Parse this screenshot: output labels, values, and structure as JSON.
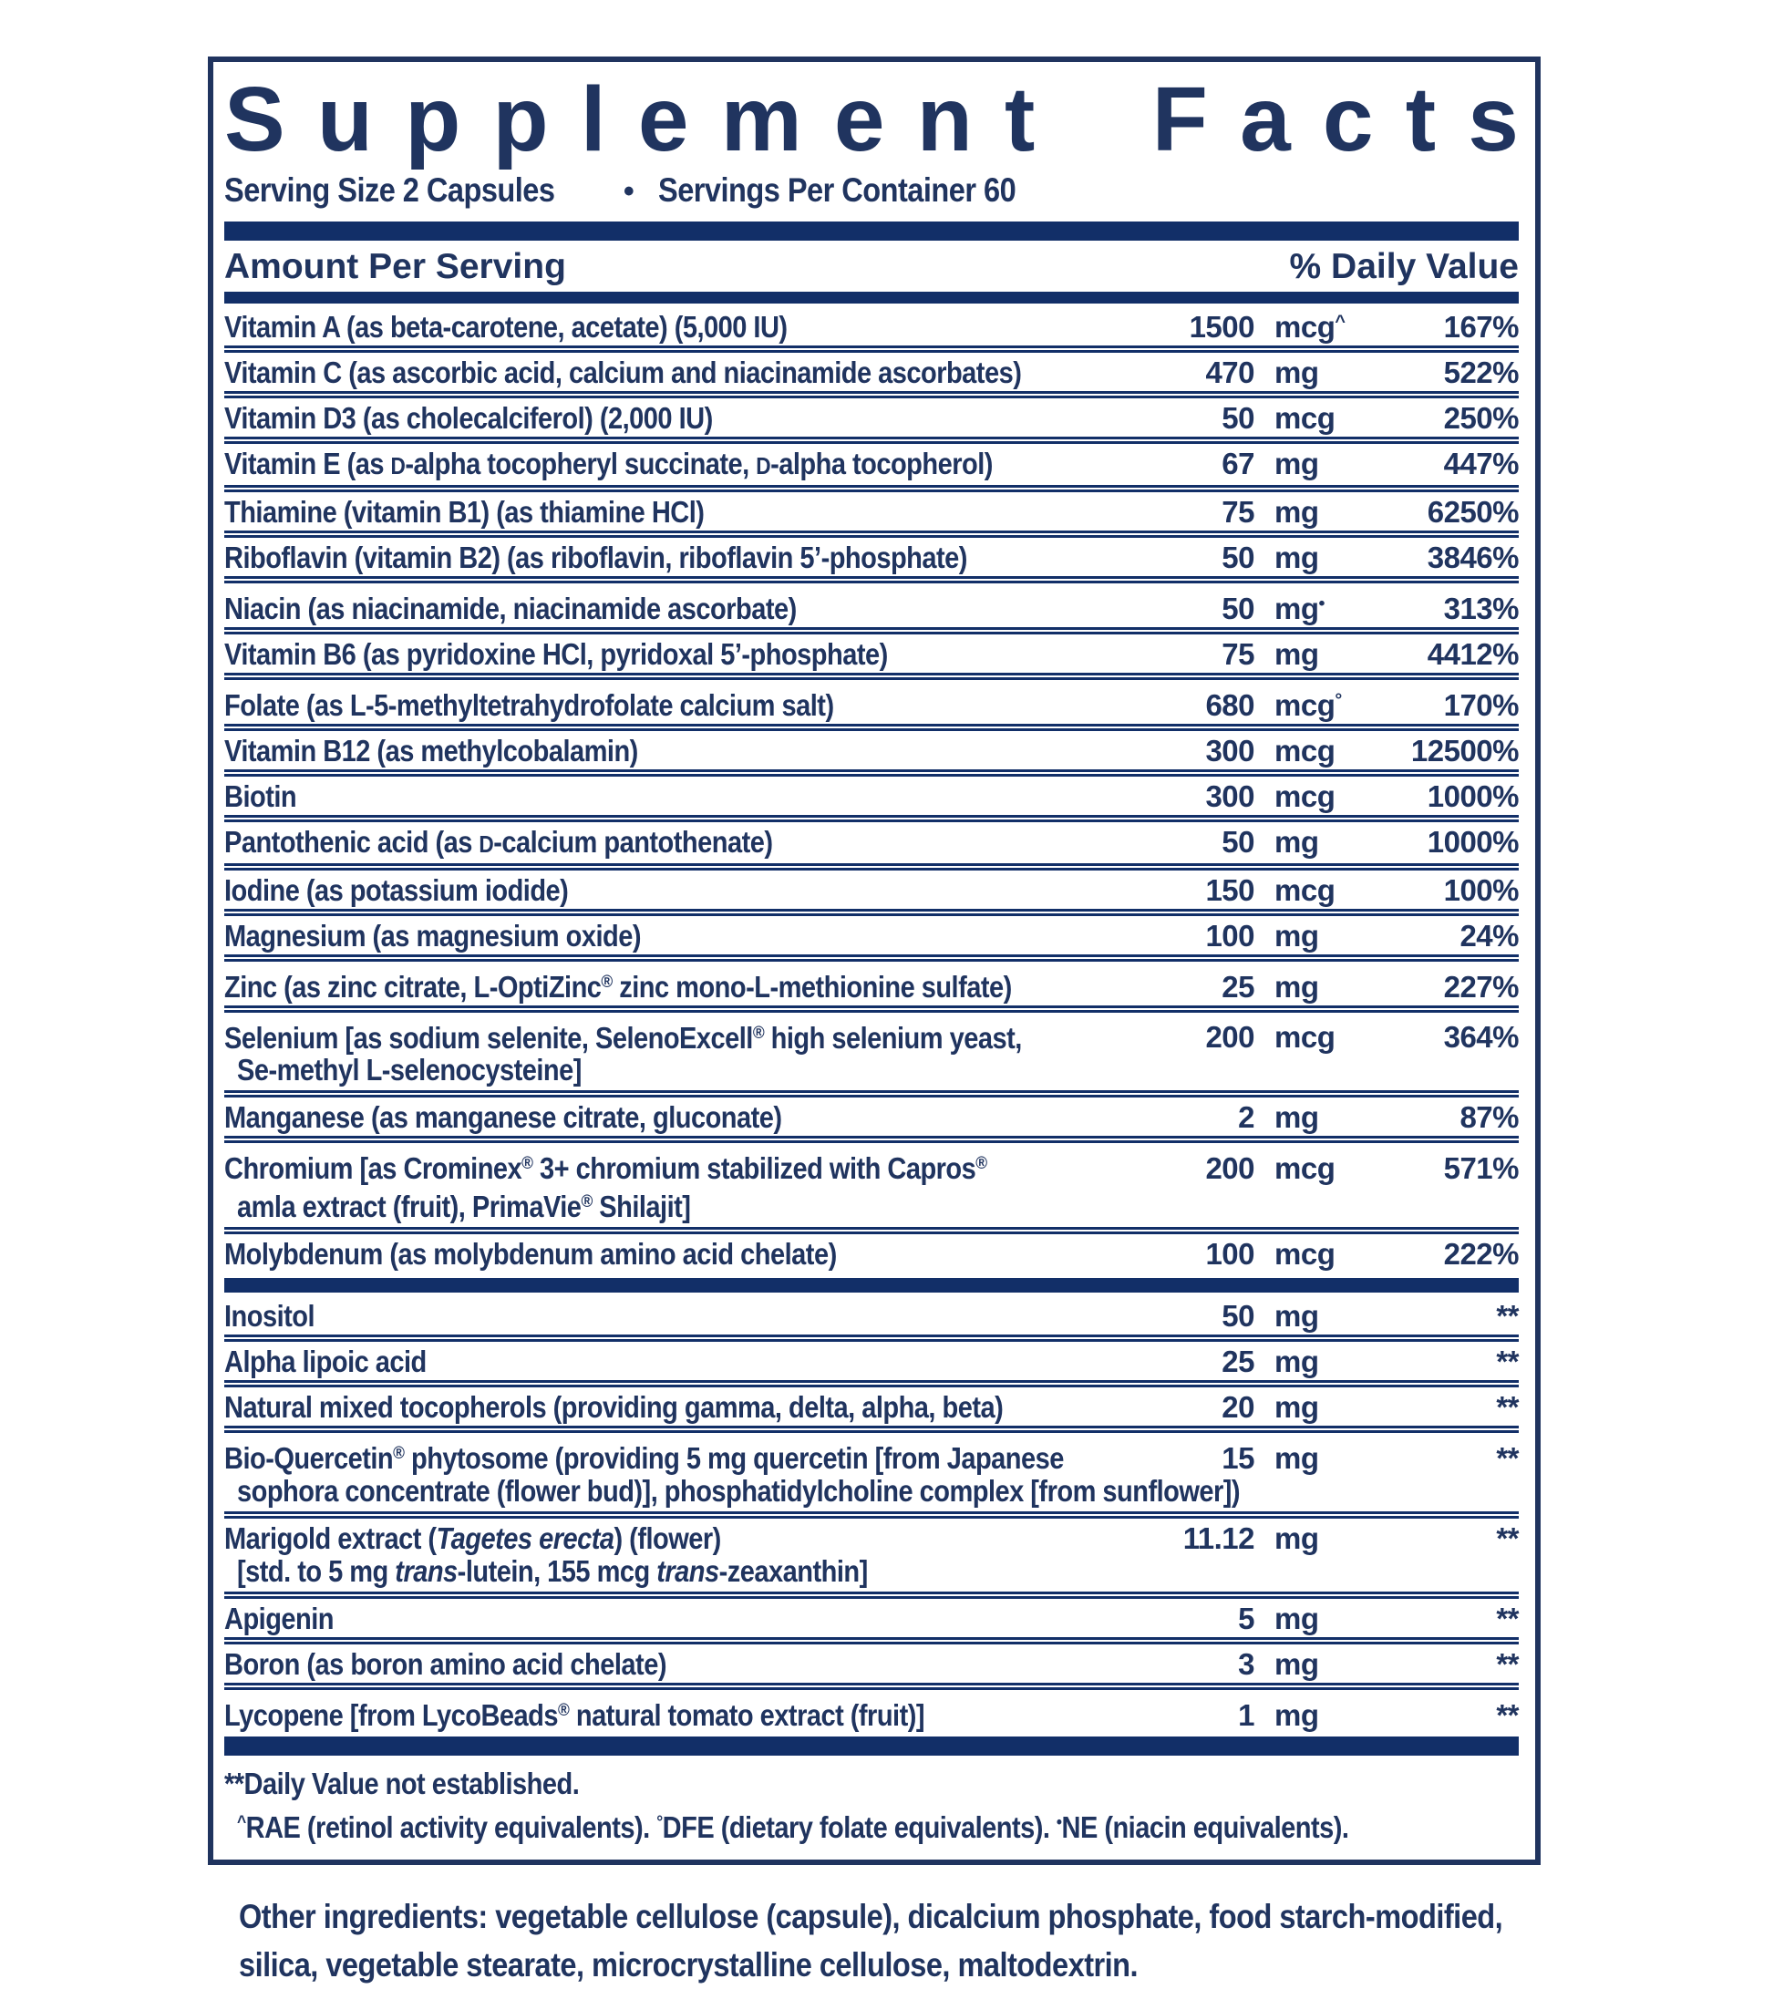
{
  "title": "Supplement Facts",
  "serving": {
    "size": "Serving Size 2 Capsules",
    "bullet": "•",
    "per": "Servings Per Container 60"
  },
  "header": {
    "amount": "Amount Per Serving",
    "dv": "% Daily Value"
  },
  "colors": {
    "ink_navy": "#20345f",
    "bar_navy": "#122f68",
    "background": "#ffffff"
  },
  "table": {
    "sections": [
      {
        "rows": [
          {
            "name": [
              {
                "text": "Vitamin A (as beta-carotene, acetate) (5,000 IU)"
              }
            ],
            "amount": "1500",
            "unit": "mcg",
            "mark": "^",
            "dv": "167%"
          },
          {
            "name": [
              {
                "text": "Vitamin C (as ascorbic acid, calcium and niacinamide ascorbates)"
              }
            ],
            "amount": "470",
            "unit": "mg",
            "dv": "522%"
          },
          {
            "name": [
              {
                "text": "Vitamin D3 (as cholecalciferol) (2,000 IU)"
              }
            ],
            "amount": "50",
            "unit": "mcg",
            "dv": "250%"
          },
          {
            "name": [
              {
                "text": "Vitamin E (as "
              },
              {
                "text": "D",
                "sc": true
              },
              {
                "text": "-alpha tocopheryl succinate, "
              },
              {
                "text": "D",
                "sc": true
              },
              {
                "text": "-alpha tocopherol)"
              }
            ],
            "amount": "67",
            "unit": "mg",
            "dv": "447%"
          },
          {
            "name": [
              {
                "text": "Thiamine (vitamin B1) (as thiamine HCl)"
              }
            ],
            "amount": "75",
            "unit": "mg",
            "dv": "6250%"
          },
          {
            "name": [
              {
                "text": "Riboflavin (vitamin B2) (as riboflavin, riboflavin 5’-phosphate)"
              }
            ],
            "amount": "50",
            "unit": "mg",
            "dv": "3846%"
          },
          {
            "name": [
              {
                "text": "Niacin (as niacinamide, niacinamide ascorbate)"
              }
            ],
            "amount": "50",
            "unit": "mg",
            "mark": "•",
            "dv": "313%"
          },
          {
            "name": [
              {
                "text": "Vitamin B6 (as pyridoxine HCl, pyridoxal 5’-phosphate)"
              }
            ],
            "amount": "75",
            "unit": "mg",
            "dv": "4412%"
          },
          {
            "name": [
              {
                "text": "Folate (as L-5-methyltetrahydrofolate calcium salt)"
              }
            ],
            "amount": "680",
            "unit": "mcg",
            "mark": "°",
            "dv": "170%"
          },
          {
            "name": [
              {
                "text": "Vitamin B12 (as methylcobalamin)"
              }
            ],
            "amount": "300",
            "unit": "mcg",
            "dv": "12500%"
          },
          {
            "name": [
              {
                "text": "Biotin"
              }
            ],
            "amount": "300",
            "unit": "mcg",
            "dv": "1000%"
          },
          {
            "name": [
              {
                "text": "Pantothenic acid (as "
              },
              {
                "text": "D",
                "sc": true
              },
              {
                "text": "-calcium pantothenate)"
              }
            ],
            "amount": "50",
            "unit": "mg",
            "dv": "1000%"
          },
          {
            "name": [
              {
                "text": "Iodine (as potassium iodide)"
              }
            ],
            "amount": "150",
            "unit": "mcg",
            "dv": "100%"
          },
          {
            "name": [
              {
                "text": "Magnesium (as magnesium oxide)"
              }
            ],
            "amount": "100",
            "unit": "mg",
            "dv": "24%"
          },
          {
            "name": [
              {
                "text": "Zinc (as zinc citrate, L-OptiZinc"
              },
              {
                "text": "®",
                "sup": true
              },
              {
                "text": " zinc mono-L-methionine sulfate)"
              }
            ],
            "amount": "25",
            "unit": "mg",
            "dv": "227%"
          },
          {
            "name": [
              {
                "text": "Selenium [as sodium selenite, SelenoExcell"
              },
              {
                "text": "®",
                "sup": true
              },
              {
                "text": " high selenium yeast,"
              }
            ],
            "name2": [
              {
                "text": "Se-methyl L-selenocysteine]"
              }
            ],
            "amount": "200",
            "unit": "mcg",
            "dv": "364%"
          },
          {
            "name": [
              {
                "text": "Manganese (as manganese citrate, gluconate)"
              }
            ],
            "amount": "2",
            "unit": "mg",
            "dv": "87%"
          },
          {
            "name": [
              {
                "text": "Chromium [as Crominex"
              },
              {
                "text": "®",
                "sup": true
              },
              {
                "text": " 3+ chromium stabilized with Capros"
              },
              {
                "text": "®",
                "sup": true
              }
            ],
            "name2": [
              {
                "text": "amla extract (fruit), PrimaVie"
              },
              {
                "text": "®",
                "sup": true
              },
              {
                "text": " Shilajit]"
              }
            ],
            "amount": "200",
            "unit": "mcg",
            "dv": "571%"
          },
          {
            "name": [
              {
                "text": "Molybdenum (as molybdenum amino acid chelate)"
              }
            ],
            "amount": "100",
            "unit": "mcg",
            "dv": "222%"
          }
        ]
      },
      {
        "rows": [
          {
            "name": [
              {
                "text": "Inositol"
              }
            ],
            "amount": "50",
            "unit": "mg",
            "dv": "**"
          },
          {
            "name": [
              {
                "text": "Alpha lipoic acid"
              }
            ],
            "amount": "25",
            "unit": "mg",
            "dv": "**"
          },
          {
            "name": [
              {
                "text": "Natural mixed tocopherols (providing gamma, delta, alpha, beta)"
              }
            ],
            "amount": "20",
            "unit": "mg",
            "dv": "**"
          },
          {
            "name": [
              {
                "text": "Bio-Quercetin"
              },
              {
                "text": "®",
                "sup": true
              },
              {
                "text": " phytosome (providing 5 mg quercetin [from Japanese"
              }
            ],
            "name2": [
              {
                "text": "sophora concentrate (flower bud)], phosphatidylcholine complex [from sunflower])"
              }
            ],
            "amount": "15",
            "unit": "mg",
            "dv": "**"
          },
          {
            "name": [
              {
                "text": "Marigold extract ("
              },
              {
                "text": "Tagetes erecta",
                "i": true
              },
              {
                "text": ") (flower)"
              }
            ],
            "name2": [
              {
                "text": "[std. to 5 mg "
              },
              {
                "text": "trans",
                "i": true
              },
              {
                "text": "-lutein, 155 mcg "
              },
              {
                "text": "trans",
                "i": true
              },
              {
                "text": "-zeaxanthin]"
              }
            ],
            "amount": "11.12",
            "unit": "mg",
            "dv": "**"
          },
          {
            "name": [
              {
                "text": "Apigenin"
              }
            ],
            "amount": "5",
            "unit": "mg",
            "dv": "**"
          },
          {
            "name": [
              {
                "text": "Boron (as boron amino acid chelate)"
              }
            ],
            "amount": "3",
            "unit": "mg",
            "dv": "**"
          },
          {
            "name": [
              {
                "text": "Lycopene [from LycoBeads"
              },
              {
                "text": "®",
                "sup": true
              },
              {
                "text": " natural tomato extract (fruit)]"
              }
            ],
            "amount": "1",
            "unit": "mg",
            "dv": "**"
          }
        ]
      }
    ]
  },
  "footnotes": {
    "line1": "**Daily Value not established.",
    "line2": [
      {
        "text": "^",
        "sup": true
      },
      {
        "text": "RAE (retinol activity equivalents). "
      },
      {
        "text": "°",
        "sup": true
      },
      {
        "text": "DFE (dietary folate equivalents). "
      },
      {
        "text": "•",
        "sup": true
      },
      {
        "text": "NE (niacin equivalents)."
      }
    ]
  },
  "other_ingredients": {
    "prefix": "Other ingredients: ",
    "lines": [
      "vegetable cellulose (capsule), dicalcium phosphate, food starch-modified,",
      "silica, vegetable stearate, microcrystalline cellulose, maltodextrin."
    ]
  }
}
